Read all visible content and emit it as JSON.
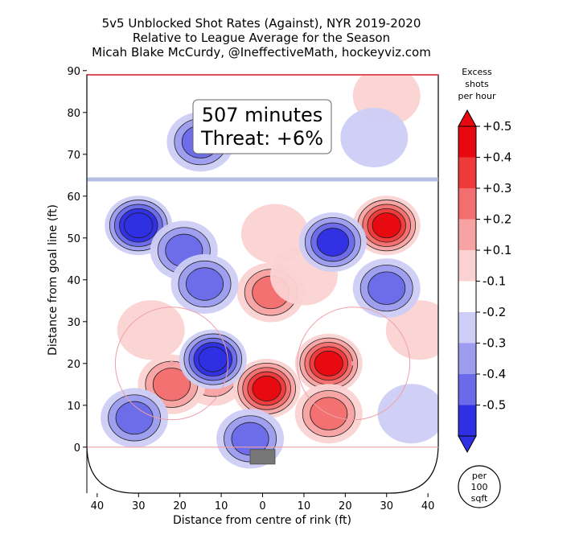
{
  "chart_data": {
    "type": "heatmap",
    "title_lines": [
      "5v5 Unblocked Shot Rates (Against), NYR 2019-2020",
      "Relative to League Average for the Season",
      "Micah Blake McCurdy, @IneffectiveMath, hockeyviz.com"
    ],
    "xlabel": "Distance from centre of rink (ft)",
    "ylabel": "Distance from goal line (ft)",
    "xlim": [
      -42.5,
      42.5
    ],
    "ylim": [
      -11,
      89
    ],
    "x_ticks": [
      40,
      30,
      20,
      10,
      0,
      10,
      20,
      30,
      40
    ],
    "y_ticks": [
      0,
      10,
      20,
      30,
      40,
      50,
      60,
      70,
      80,
      90
    ],
    "annotation": [
      "507 minutes",
      "Threat: +6%"
    ],
    "colorbar": {
      "title_lines": [
        "Excess",
        "shots",
        "per hour"
      ],
      "ticks": [
        "+0.5",
        "+0.4",
        "+0.3",
        "+0.2",
        "+0.1",
        "-0.1",
        "-0.2",
        "-0.3",
        "-0.4",
        "-0.5"
      ],
      "colors": [
        "#e8080f",
        "#ef3a3a",
        "#f36f6f",
        "#f7a3a3",
        "#fbd2d2",
        "#ffffff",
        "#cdcdf6",
        "#9d9df0",
        "#6b6bea",
        "#2f2fe4"
      ]
    },
    "unit_badge": [
      "per",
      "100",
      "sqft"
    ],
    "blobs": [
      {
        "sign": "against-more",
        "x": 30,
        "y": 53,
        "level": 0.5
      },
      {
        "sign": "against-more",
        "x": -12,
        "y": 17,
        "level": 0.2
      },
      {
        "sign": "against-more",
        "x": 1,
        "y": 14,
        "level": 0.5
      },
      {
        "sign": "against-more",
        "x": 16,
        "y": 20,
        "level": 0.45
      },
      {
        "sign": "against-more",
        "x": -22,
        "y": 15,
        "level": 0.35
      },
      {
        "sign": "against-more",
        "x": 16,
        "y": 8,
        "level": 0.25
      },
      {
        "sign": "against-more",
        "x": 2,
        "y": 37,
        "level": 0.25
      },
      {
        "sign": "against-more",
        "x": 10,
        "y": 41,
        "level": 0.15
      },
      {
        "sign": "against-more",
        "x": 30,
        "y": 84,
        "level": 0.15
      },
      {
        "sign": "against-more",
        "x": 38,
        "y": 28,
        "level": 0.15
      },
      {
        "sign": "against-more",
        "x": -27,
        "y": 28,
        "level": 0.15
      },
      {
        "sign": "against-more",
        "x": 3,
        "y": 51,
        "level": 0.1
      },
      {
        "sign": "against-less",
        "x": -30,
        "y": 53,
        "level": 0.45
      },
      {
        "sign": "against-less",
        "x": -19,
        "y": 47,
        "level": 0.3
      },
      {
        "sign": "against-less",
        "x": -12,
        "y": 21,
        "level": 0.5
      },
      {
        "sign": "against-less",
        "x": 17,
        "y": 49,
        "level": 0.4
      },
      {
        "sign": "against-less",
        "x": 30,
        "y": 38,
        "level": 0.35
      },
      {
        "sign": "against-less",
        "x": -15,
        "y": 73,
        "level": 0.25
      },
      {
        "sign": "against-less",
        "x": -14,
        "y": 39,
        "level": 0.3
      },
      {
        "sign": "against-less",
        "x": -3,
        "y": 2,
        "level": 0.35
      },
      {
        "sign": "against-less",
        "x": -31,
        "y": 7,
        "level": 0.3
      },
      {
        "sign": "against-less",
        "x": 36,
        "y": 8,
        "level": 0.15
      },
      {
        "sign": "against-less",
        "x": 27,
        "y": 74,
        "level": 0.15
      }
    ]
  }
}
